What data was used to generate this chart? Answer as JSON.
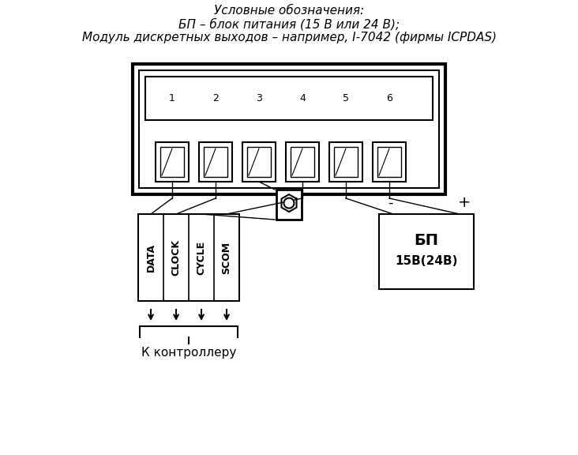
{
  "title_lines": [
    "Условные обозначения:",
    "БП – блок питания (15 В или 24 В);",
    "Модуль дискретных выходов – например, I-7042 (фирмы ICPDAS)"
  ],
  "bg_color": "#ffffff",
  "line_color": "#000000",
  "terminal_labels": [
    "1",
    "2",
    "3",
    "4",
    "5",
    "6"
  ],
  "controller_labels": [
    "DATA",
    "CLOCK",
    "CYCLE",
    "SCOM"
  ],
  "bp_line1": "БП",
  "bp_line2": "15В(24В)",
  "controller_caption": "К контроллеру",
  "minus_label": "-",
  "plus_label": "+"
}
